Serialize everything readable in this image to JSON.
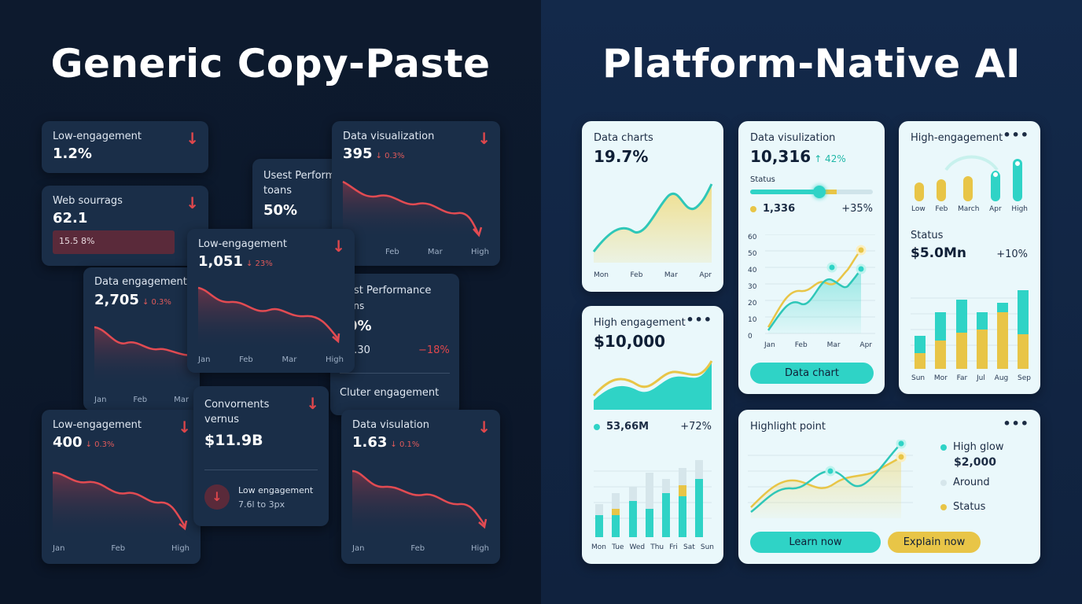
{
  "left": {
    "title": "Generic Copy-Paste",
    "cards": {
      "c1": {
        "label": "Low-engagement",
        "value": "1.2%",
        "arrow": "↓"
      },
      "c2": {
        "label": "Web sourrags",
        "value": "62.1",
        "bar_text": "15.5 8%",
        "arrow": "↓"
      },
      "c3": {
        "label": "Usest Perform toans",
        "value": "50%"
      },
      "c4": {
        "label": "Data visualization",
        "value": "395",
        "change": "↓ 0.3%",
        "arrow": "↓",
        "xlabels": [
          "Feb",
          "Mar",
          "High"
        ]
      },
      "c5": {
        "label": "Data engagement",
        "value": "2,705",
        "change": "↓ 0.3%",
        "xlabels": [
          "Jan",
          "Feb",
          "Mar"
        ]
      },
      "c6": {
        "label": "Low-engagement",
        "value": "1,051",
        "change": "↓ 23%",
        "arrow": "↓",
        "xlabels": [
          "Jan",
          "Feb",
          "Mar",
          "High"
        ]
      },
      "c7": {
        "label": "est Performance",
        "label2": "ans",
        "value": "0%",
        "sub_value": "0.30",
        "sub_change": "−18%",
        "footer": "Cluter engagement"
      },
      "c8": {
        "label": "Low-engagement",
        "value": "400",
        "change": "↓ 0.3%",
        "arrow": "↓",
        "xlabels": [
          "Jan",
          "Feb",
          "High"
        ]
      },
      "c9": {
        "label": "Convornents",
        "label2": "vernus",
        "value": "$11.9B",
        "arrow": "↓",
        "item_title": "Low engagement",
        "item_sub": "7.6l to 3px"
      },
      "c10": {
        "label": "Data visulation",
        "value": "1.63",
        "change": "↓ 0.1%",
        "arrow": "↓",
        "xlabels": [
          "Jan",
          "Feb",
          "High"
        ]
      }
    }
  },
  "right": {
    "title": "Platform-Native AI",
    "cards": {
      "r1": {
        "label": "Data charts",
        "value": "19.7%",
        "xlabels": [
          "Mon",
          "Feb",
          "Mar",
          "Apr"
        ]
      },
      "r2": {
        "label": "Data visulization",
        "value": "10,316",
        "change": "↑ 42%",
        "status_label": "Status",
        "metric_value": "1,336",
        "metric_change": "+35%",
        "y_ticks": [
          "60",
          "50",
          "40",
          "30",
          "20",
          "10",
          "0"
        ],
        "xlabels": [
          "Jan",
          "Feb",
          "Mar",
          "Apr"
        ],
        "button": "Data chart"
      },
      "r3": {
        "label": "High-engagement",
        "dots": "•••",
        "top_labels": [
          "Low",
          "Feb",
          "March",
          "Apr",
          "High"
        ],
        "status_label": "Status",
        "status_value": "$5.0Mn",
        "status_change": "+10%",
        "xlabels": [
          "Sun",
          "Mor",
          "Far",
          "Jul",
          "Aug",
          "Sep"
        ]
      },
      "r4": {
        "label": "High engagement",
        "dots": "•••",
        "value": "$10,000",
        "metric_value": "53,66M",
        "metric_change": "+72%",
        "xlabels": [
          "Mon",
          "Tue",
          "Wed",
          "Thu",
          "Fri",
          "Sat",
          "Sun"
        ]
      },
      "r5": {
        "label": "Highlight point",
        "dots": "•••",
        "legend": [
          {
            "label": "High glow",
            "value": "$2,000"
          },
          {
            "label": "Around"
          },
          {
            "label": "Status"
          }
        ],
        "buttons": [
          "Learn now",
          "Explain now"
        ]
      }
    }
  },
  "colors": {
    "teal": "#2fd3c6",
    "gold": "#e8c547",
    "red": "#e0474c",
    "dark_card": "#1a2e48",
    "light_card": "#eaf8fb"
  }
}
